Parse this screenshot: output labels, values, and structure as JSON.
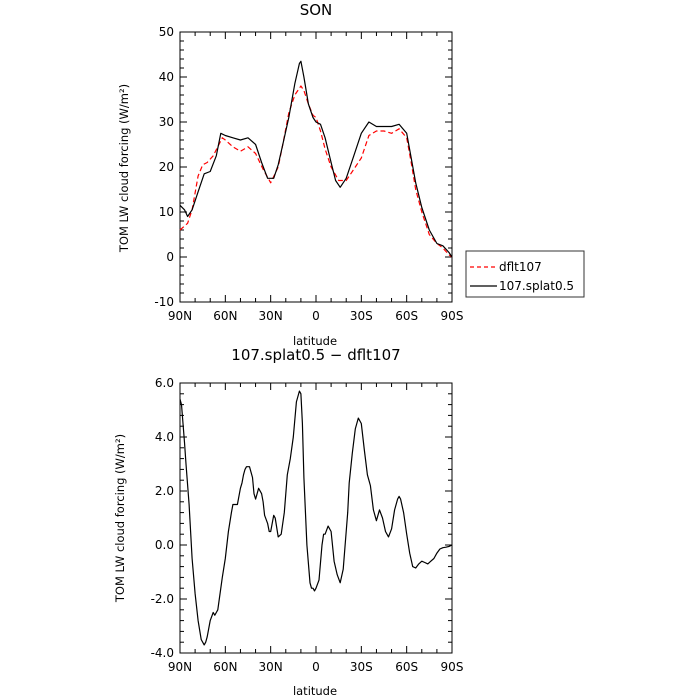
{
  "chart_data": [
    {
      "type": "line",
      "title": "SON",
      "xlabel": "latitude",
      "ylabel": "TOM LW cloud forcing (W/m²)",
      "ylim": [
        -10,
        50
      ],
      "xlim": [
        90,
        -90
      ],
      "yticks": [
        "-10",
        "0",
        "10",
        "20",
        "30",
        "40",
        "50"
      ],
      "xticks": [
        "90N",
        "60N",
        "30N",
        "0",
        "30S",
        "60S",
        "90S"
      ],
      "xtick_values": [
        90,
        60,
        30,
        0,
        -30,
        -60,
        -90
      ],
      "ytick_values": [
        -10,
        0,
        10,
        20,
        30,
        40,
        50
      ],
      "legend": {
        "placement": "right",
        "entries": [
          "dflt107",
          "107.splat0.5"
        ]
      },
      "series": [
        {
          "name": "dflt107",
          "color": "#ff0000",
          "style": "dashed",
          "x": [
            90,
            85,
            82,
            78,
            75,
            72,
            68,
            65,
            62,
            60,
            55,
            50,
            45,
            40,
            35,
            30,
            25,
            22,
            18,
            14,
            10,
            8,
            5,
            2,
            0,
            -3,
            -6,
            -10,
            -15,
            -20,
            -25,
            -30,
            -35,
            -40,
            -45,
            -50,
            -55,
            -60,
            -63,
            -66,
            -70,
            -75,
            -80,
            -84,
            -88,
            -90
          ],
          "y": [
            6,
            7.5,
            10.5,
            18,
            20.5,
            21,
            22.5,
            24.5,
            26.5,
            26,
            24.5,
            23.5,
            24.5,
            23,
            19.5,
            16.5,
            20,
            25,
            32,
            36,
            38,
            37,
            34,
            31.5,
            31,
            28,
            24,
            20,
            17,
            17,
            19.5,
            22,
            27,
            28,
            28,
            27.5,
            28.5,
            26.5,
            21,
            15,
            10,
            5,
            3,
            2,
            0.5,
            0
          ]
        },
        {
          "name": "107.splat0.5",
          "color": "#000000",
          "style": "solid",
          "x": [
            90,
            87,
            85,
            82,
            78,
            74,
            70,
            66,
            63,
            60,
            55,
            50,
            45,
            40,
            36,
            32,
            28,
            25,
            22,
            18,
            14,
            11,
            10,
            8,
            5,
            2,
            0,
            -3,
            -6,
            -10,
            -13,
            -16,
            -20,
            -25,
            -30,
            -35,
            -40,
            -45,
            -50,
            -55,
            -60,
            -63,
            -66,
            -70,
            -75,
            -80,
            -84,
            -88,
            -90
          ],
          "y": [
            11.5,
            10.5,
            9,
            10.5,
            14.5,
            18.5,
            19,
            22.5,
            27.5,
            27,
            26.5,
            26,
            26.5,
            25,
            21,
            17.5,
            17.5,
            20.5,
            25,
            31,
            38.5,
            43,
            43.5,
            40,
            34,
            31,
            30,
            29.5,
            26.5,
            21,
            17,
            15.5,
            17.5,
            22.5,
            27.5,
            30,
            29,
            29,
            29,
            29.5,
            27.5,
            22,
            16.5,
            11,
            6,
            3,
            2.5,
            1,
            0
          ]
        }
      ]
    },
    {
      "type": "line",
      "title": "107.splat0.5 − dflt107",
      "xlabel": "latitude",
      "ylabel": "TOM LW cloud forcing (W/m²)",
      "ylim": [
        -4,
        6
      ],
      "xlim": [
        90,
        -90
      ],
      "yticks": [
        "-4.0",
        "-2.0",
        "0.0",
        "2.0",
        "4.0",
        "6.0"
      ],
      "ytick_values": [
        -4,
        -2,
        0,
        2,
        4,
        6
      ],
      "xticks": [
        "90N",
        "60N",
        "30N",
        "0",
        "30S",
        "60S",
        "90S"
      ],
      "xtick_values": [
        90,
        60,
        30,
        0,
        -30,
        -60,
        -90
      ],
      "series": [
        {
          "color": "#000000",
          "style": "solid",
          "x": [
            90,
            89,
            88,
            87,
            86,
            84,
            82,
            80,
            78,
            76,
            74,
            73,
            72,
            70,
            68,
            67,
            66,
            65,
            64,
            62,
            60,
            58,
            56,
            55,
            54,
            52,
            50,
            49,
            48,
            47,
            46,
            44,
            42,
            41,
            40,
            38,
            36,
            35,
            34,
            32,
            31,
            30,
            29,
            28,
            27,
            25,
            23,
            21,
            19,
            17,
            15,
            13,
            11,
            10,
            9,
            8,
            6,
            4,
            3,
            2,
            1,
            0,
            -2,
            -4,
            -5,
            -6,
            -8,
            -10,
            -12,
            -14,
            -16,
            -18,
            -20,
            -21,
            -22,
            -24,
            -26,
            -28,
            -30,
            -32,
            -34,
            -35,
            -36,
            -38,
            -40,
            -42,
            -44,
            -46,
            -48,
            -50,
            -52,
            -54,
            -55,
            -56,
            -58,
            -60,
            -62,
            -64,
            -66,
            -68,
            -70,
            -72,
            -74,
            -76,
            -78,
            -80,
            -82,
            -84,
            -86,
            -88,
            -90
          ],
          "y": [
            5.4,
            5.2,
            4.5,
            3.8,
            3.0,
            1.5,
            -0.5,
            -1.8,
            -2.8,
            -3.5,
            -3.7,
            -3.6,
            -3.4,
            -2.8,
            -2.5,
            -2.6,
            -2.5,
            -2.4,
            -2.0,
            -1.2,
            -0.5,
            0.5,
            1.2,
            1.5,
            1.5,
            1.5,
            2.1,
            2.3,
            2.6,
            2.8,
            2.9,
            2.9,
            2.5,
            1.9,
            1.7,
            2.1,
            1.9,
            1.6,
            1.1,
            0.8,
            0.5,
            0.5,
            0.8,
            1.1,
            1.0,
            0.3,
            0.4,
            1.2,
            2.6,
            3.2,
            4.0,
            5.3,
            5.7,
            5.6,
            4.5,
            2.5,
            0.0,
            -1.4,
            -1.6,
            -1.6,
            -1.7,
            -1.6,
            -1.3,
            0.0,
            0.4,
            0.4,
            0.7,
            0.5,
            -0.6,
            -1.1,
            -1.4,
            -0.9,
            0.5,
            1.2,
            2.3,
            3.4,
            4.3,
            4.7,
            4.5,
            3.5,
            2.6,
            2.4,
            2.2,
            1.3,
            0.9,
            1.3,
            1.0,
            0.5,
            0.3,
            0.6,
            1.3,
            1.7,
            1.8,
            1.7,
            1.2,
            0.4,
            -0.3,
            -0.8,
            -0.85,
            -0.7,
            -0.6,
            -0.65,
            -0.7,
            -0.6,
            -0.5,
            -0.3,
            -0.15,
            -0.1,
            -0.08,
            -0.05,
            0.0
          ]
        }
      ]
    }
  ]
}
